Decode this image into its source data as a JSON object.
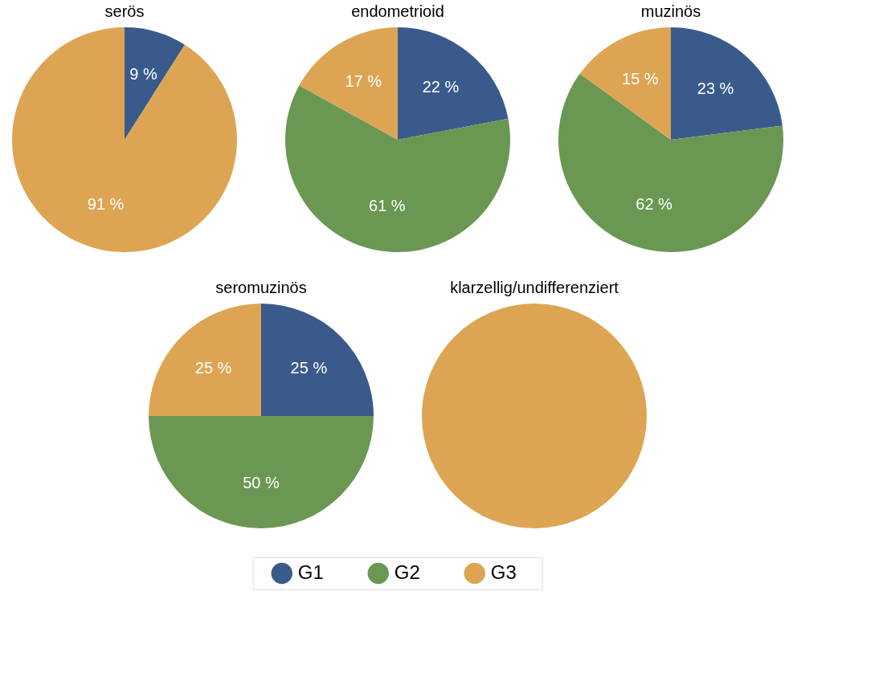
{
  "chart_data": [
    {
      "type": "pie",
      "title": "serös",
      "categories": [
        "G1",
        "G2",
        "G3"
      ],
      "values": [
        9,
        0,
        91
      ],
      "colors": [
        "#3a5a8c",
        "#6a9752",
        "#dda553"
      ],
      "value_labels": [
        "9 %",
        null,
        "91 %"
      ],
      "legend": "bottom"
    },
    {
      "type": "pie",
      "title": "endometrioid",
      "categories": [
        null,
        null,
        null
      ],
      "values": [
        22,
        61,
        17
      ],
      "colors": [
        "#3a5a8c",
        "#6a9752",
        "#dda553"
      ],
      "value_labels": [
        "22 %",
        "61 %",
        "17 %"
      ]
    },
    {
      "type": "pie",
      "title": "muzinös",
      "categories": [
        null,
        null,
        null
      ],
      "values": [
        23,
        62,
        15
      ],
      "colors": [
        "#3a5a8c",
        "#6a9752",
        "#dda553"
      ],
      "value_labels": [
        "23 %",
        "62 %",
        "15 %"
      ]
    },
    {
      "type": "pie",
      "title": "seromuzinös",
      "categories": [
        null,
        null,
        null
      ],
      "values": [
        25,
        50,
        25
      ],
      "colors": [
        "#3a5a8c",
        "#6a9752",
        "#dda553"
      ],
      "value_labels": [
        "25 %",
        "50 %",
        "25 %"
      ]
    },
    {
      "type": "pie",
      "title": "klarzellig/undifferenziert",
      "categories": [
        null,
        null,
        null
      ],
      "values": [
        0,
        0,
        100
      ],
      "colors": [
        "#3a5a8c",
        "#6a9752",
        "#dda553"
      ],
      "value_labels": [
        null,
        null,
        null
      ]
    }
  ]
}
